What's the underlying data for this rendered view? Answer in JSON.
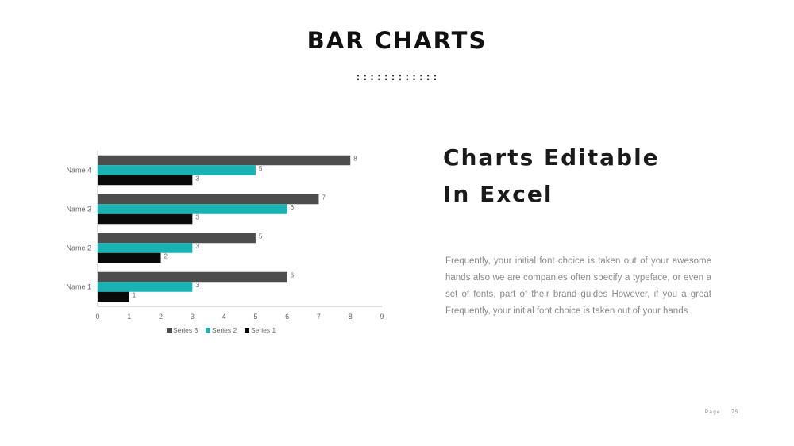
{
  "slide": {
    "title": "BAR CHARTS",
    "dots": "::::::::::::",
    "heading_line1": "Charts Editable",
    "heading_line2": "In Excel",
    "body": "Frequently, your initial font choice is taken out of your awesome hands also we are companies often specify a typeface, or even a set of fonts,  part of their brand guides However, if you a great Frequently, your initial font choice is taken out of your hands.",
    "footer_label": "Page",
    "footer_number": "75"
  },
  "chart_data": {
    "type": "bar",
    "orientation": "horizontal",
    "categories": [
      "Name 1",
      "Name 2",
      "Name 3",
      "Name 4"
    ],
    "series": [
      {
        "name": "Series 3",
        "color": "#4d4d4d",
        "values": [
          6,
          5,
          7,
          8
        ]
      },
      {
        "name": "Series 2",
        "color": "#1ab3b3",
        "values": [
          3,
          3,
          6,
          5
        ]
      },
      {
        "name": "Series 1",
        "color": "#0a0a0a",
        "values": [
          1,
          2,
          3,
          3
        ]
      }
    ],
    "xlim": [
      0,
      9
    ],
    "xticks": [
      0,
      1,
      2,
      3,
      4,
      5,
      6,
      7,
      8,
      9
    ],
    "grid": false,
    "data_labels": true,
    "legend_position": "bottom"
  }
}
